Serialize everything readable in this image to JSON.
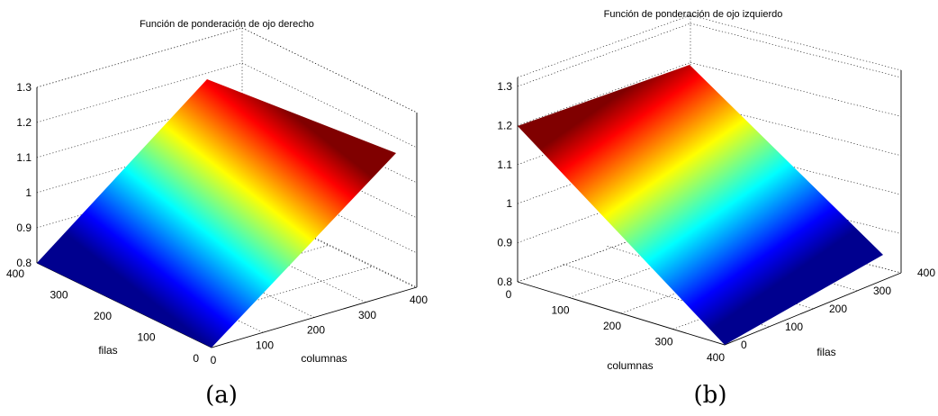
{
  "chart_data": [
    {
      "type": "surface",
      "panel_label": "(a)",
      "title": "Función de ponderación de ojo derecho",
      "xlabel": "columnas",
      "ylabel": "filas",
      "zlabel": "",
      "x_ticks": [
        "0",
        "100",
        "200",
        "300",
        "400"
      ],
      "y_ticks": [
        "0",
        "100",
        "200",
        "300",
        "400"
      ],
      "z_ticks": [
        "0.8",
        "0.9",
        "1",
        "1.1",
        "1.2",
        "1.3"
      ],
      "xlim": [
        0,
        400
      ],
      "ylim": [
        0,
        400
      ],
      "zlim": [
        0.8,
        1.3
      ],
      "colormap": "jet",
      "grid": true,
      "surface": {
        "x": [
          0,
          400
        ],
        "y": [
          0,
          400
        ],
        "z": [
          [
            0.8,
            0.8
          ],
          [
            1.2,
            1.2
          ]
        ]
      }
    },
    {
      "type": "surface",
      "panel_label": "(b)",
      "title": "Función de ponderación de ojo izquierdo",
      "xlabel": "columnas",
      "ylabel": "filas",
      "zlabel": "",
      "x_ticks": [
        "0",
        "100",
        "200",
        "300",
        "400"
      ],
      "y_ticks": [
        "0",
        "100",
        "200",
        "300",
        "400"
      ],
      "z_ticks": [
        "0.8",
        "0.9",
        "1",
        "1.1",
        "1.2",
        "1.3"
      ],
      "xlim": [
        0,
        400
      ],
      "ylim": [
        0,
        400
      ],
      "zlim": [
        0.8,
        1.3
      ],
      "colormap": "jet",
      "grid": true,
      "surface": {
        "x": [
          0,
          400
        ],
        "y": [
          0,
          400
        ],
        "z": [
          [
            1.2,
            1.2
          ],
          [
            0.8,
            0.8
          ]
        ]
      }
    }
  ]
}
